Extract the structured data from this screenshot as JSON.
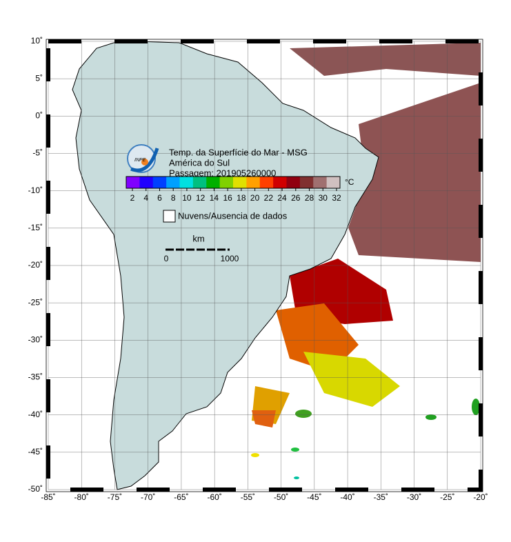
{
  "map": {
    "title": "Temp. da Superfície do Mar - MSG",
    "region": "América do Sul",
    "pass": "Passagem: 201905260000",
    "logo": "INPE",
    "lon_labels": [
      {
        "value": -85,
        "label": "-85˚"
      },
      {
        "value": -80,
        "label": "-80˚"
      },
      {
        "value": -75,
        "label": "-75˚"
      },
      {
        "value": -70,
        "label": "-70˚"
      },
      {
        "value": -65,
        "label": "-65˚"
      },
      {
        "value": -60,
        "label": "-60˚"
      },
      {
        "value": -55,
        "label": "-55˚"
      },
      {
        "value": -50,
        "label": "-50˚"
      },
      {
        "value": -45,
        "label": "-45˚"
      },
      {
        "value": -40,
        "label": "-40˚"
      },
      {
        "value": -35,
        "label": "-35˚"
      },
      {
        "value": -30,
        "label": "-30˚"
      },
      {
        "value": -25,
        "label": "-25˚"
      },
      {
        "value": -20,
        "label": "-20˚"
      }
    ],
    "lat_labels": [
      {
        "value": 10,
        "label": "10˚"
      },
      {
        "value": 5,
        "label": "5˚"
      },
      {
        "value": 0,
        "label": "0˚"
      },
      {
        "value": -5,
        "label": "-5˚"
      },
      {
        "value": -10,
        "label": "-10˚"
      },
      {
        "value": -15,
        "label": "-15˚"
      },
      {
        "value": -20,
        "label": "-20˚"
      },
      {
        "value": -25,
        "label": "-25˚"
      },
      {
        "value": -30,
        "label": "-30˚"
      },
      {
        "value": -35,
        "label": "-35˚"
      },
      {
        "value": -40,
        "label": "-40˚"
      },
      {
        "value": -45,
        "label": "-45˚"
      },
      {
        "value": -50,
        "label": "-50˚"
      }
    ],
    "colorbar": {
      "ticks": [
        2,
        4,
        6,
        8,
        10,
        12,
        14,
        16,
        18,
        20,
        22,
        24,
        26,
        28,
        30,
        32
      ],
      "unit": "°C",
      "colors": [
        "#8000ff",
        "#2000ff",
        "#0040ff",
        "#00a0ff",
        "#00e0e0",
        "#00c080",
        "#00b000",
        "#80d000",
        "#e0e000",
        "#ffa000",
        "#ff4000",
        "#d00000",
        "#900010",
        "#803030",
        "#a07070",
        "#d0c0c0"
      ]
    },
    "legend_label": "Nuvens/Ausencia de dados",
    "scale": {
      "unit": "km",
      "start": "0",
      "end": "1000"
    }
  }
}
